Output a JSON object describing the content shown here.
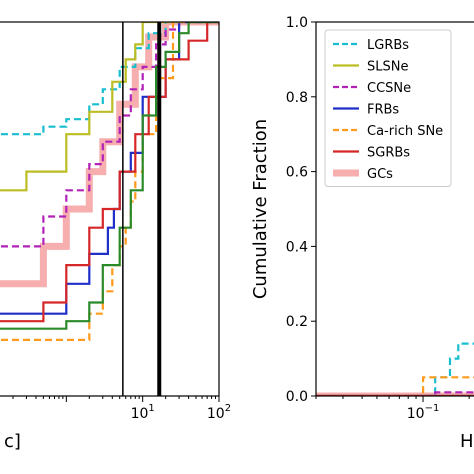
{
  "chart_data": [
    {
      "type": "line",
      "step": true,
      "xscale": "log",
      "xlim": [
        0.1,
        100
      ],
      "ylim": [
        0,
        1
      ],
      "xlabel_visible": "c]",
      "xticks": [
        {
          "value": 10,
          "base": "10",
          "exp": "1"
        },
        {
          "value": 100,
          "base": "10",
          "exp": "2"
        }
      ],
      "vlines": [
        {
          "x": 5.5,
          "width": 1.5
        },
        {
          "x": 16.5,
          "width": 4
        }
      ],
      "series": [
        {
          "name": "LGRBs",
          "color": "#17becf",
          "dash": "dashed",
          "points": [
            [
              0.1,
              0.7
            ],
            [
              0.5,
              0.72
            ],
            [
              1.0,
              0.74
            ],
            [
              2.0,
              0.78
            ],
            [
              3.0,
              0.82
            ],
            [
              5.0,
              0.88
            ],
            [
              8.0,
              0.93
            ],
            [
              12.0,
              0.97
            ],
            [
              20.0,
              1.0
            ],
            [
              100,
              1.0
            ]
          ]
        },
        {
          "name": "SLSNe",
          "color": "#bcbd22",
          "dash": "solid",
          "points": [
            [
              0.1,
              0.55
            ],
            [
              0.3,
              0.6
            ],
            [
              1.0,
              0.7
            ],
            [
              2.0,
              0.76
            ],
            [
              4.0,
              0.84
            ],
            [
              6.0,
              0.9
            ],
            [
              8.0,
              0.94
            ],
            [
              10.0,
              1.0
            ],
            [
              100,
              1.0
            ]
          ]
        },
        {
          "name": "CCSNe",
          "color": "#b322b8",
          "dash": "dashed",
          "points": [
            [
              0.1,
              0.4
            ],
            [
              0.5,
              0.48
            ],
            [
              1.0,
              0.55
            ],
            [
              2.0,
              0.62
            ],
            [
              3.0,
              0.68
            ],
            [
              5.0,
              0.75
            ],
            [
              7.0,
              0.82
            ],
            [
              10.0,
              0.88
            ],
            [
              15.0,
              0.94
            ],
            [
              20.0,
              0.98
            ],
            [
              30.0,
              1.0
            ],
            [
              100,
              1.0
            ]
          ]
        },
        {
          "name": "FRBs",
          "color": "#1f2fc8",
          "dash": "solid",
          "points": [
            [
              0.1,
              0.22
            ],
            [
              1.0,
              0.3
            ],
            [
              2.0,
              0.38
            ],
            [
              3.5,
              0.45
            ],
            [
              4.2,
              0.5
            ],
            [
              5.0,
              0.6
            ],
            [
              7.0,
              0.65
            ],
            [
              10.0,
              0.8
            ],
            [
              20.0,
              0.9
            ],
            [
              30.0,
              1.0
            ],
            [
              100,
              1.0
            ]
          ]
        },
        {
          "name": "Ca-rich SNe",
          "color": "#ff9a1a",
          "dash": "dashed",
          "points": [
            [
              0.1,
              0.15
            ],
            [
              2.0,
              0.22
            ],
            [
              3.0,
              0.28
            ],
            [
              4.0,
              0.35
            ],
            [
              5.0,
              0.4
            ],
            [
              6.0,
              0.45
            ],
            [
              7.0,
              0.52
            ],
            [
              8.0,
              0.6
            ],
            [
              10.0,
              0.7
            ],
            [
              15.0,
              0.85
            ],
            [
              25.0,
              1.0
            ],
            [
              100,
              1.0
            ]
          ]
        },
        {
          "name": "SGRBs",
          "color": "#d62728",
          "dash": "solid",
          "points": [
            [
              0.1,
              0.2
            ],
            [
              0.5,
              0.25
            ],
            [
              1.0,
              0.35
            ],
            [
              2.0,
              0.45
            ],
            [
              3.0,
              0.5
            ],
            [
              5.0,
              0.6
            ],
            [
              8.0,
              0.7
            ],
            [
              12.0,
              0.8
            ],
            [
              20.0,
              0.9
            ],
            [
              40.0,
              0.95
            ],
            [
              70.0,
              1.0
            ],
            [
              100,
              1.0
            ]
          ]
        },
        {
          "name": "GCs",
          "color": "#f4a0a0",
          "dash": "thick",
          "points": [
            [
              0.1,
              0.3
            ],
            [
              0.5,
              0.4
            ],
            [
              1.0,
              0.5
            ],
            [
              2.0,
              0.6
            ],
            [
              3.0,
              0.68
            ],
            [
              5.0,
              0.78
            ],
            [
              8.0,
              0.88
            ],
            [
              12.0,
              0.96
            ],
            [
              20.0,
              1.0
            ],
            [
              100,
              1.0
            ]
          ]
        },
        {
          "name": "green",
          "color": "#2a8a2a",
          "dash": "solid",
          "points": [
            [
              0.1,
              0.18
            ],
            [
              1.0,
              0.2
            ],
            [
              2.0,
              0.25
            ],
            [
              3.0,
              0.35
            ],
            [
              5.0,
              0.45
            ],
            [
              7.0,
              0.55
            ],
            [
              10.0,
              0.75
            ],
            [
              15.0,
              0.88
            ],
            [
              20.0,
              0.92
            ],
            [
              30.0,
              0.97
            ],
            [
              40.0,
              1.0
            ],
            [
              100,
              1.0
            ]
          ]
        }
      ]
    },
    {
      "type": "line",
      "step": true,
      "xscale": "log",
      "xlim": [
        0.02,
        0.25
      ],
      "ylim": [
        0,
        1
      ],
      "ylabel": "Cumulative Fraction",
      "xlabel_visible": "H",
      "yticks": [
        "0.0",
        "0.2",
        "0.4",
        "0.6",
        "0.8",
        "1.0"
      ],
      "yticks_values": [
        0.0,
        0.2,
        0.4,
        0.6,
        0.8,
        1.0
      ],
      "xticks": [
        {
          "value": 0.1,
          "base": "10",
          "exp": "−1"
        }
      ],
      "legend": {
        "placement": "top-left",
        "entries": [
          "LGRBs",
          "SLSNe",
          "CCSNe",
          "FRBs",
          "Ca-rich SNe",
          "SGRBs",
          "GCs"
        ]
      },
      "series": [
        {
          "name": "LGRBs",
          "color": "#17becf",
          "dash": "dashed",
          "points": [
            [
              0.02,
              0.0
            ],
            [
              0.12,
              0.05
            ],
            [
              0.15,
              0.1
            ],
            [
              0.17,
              0.14
            ],
            [
              0.25,
              0.14
            ]
          ]
        },
        {
          "name": "SLSNe",
          "color": "#bcbd22",
          "dash": "solid",
          "points": [
            [
              0.02,
              0.0
            ],
            [
              0.25,
              0.0
            ]
          ]
        },
        {
          "name": "CCSNe",
          "color": "#b322b8",
          "dash": "dashed",
          "points": [
            [
              0.02,
              0.0
            ],
            [
              0.12,
              0.01
            ],
            [
              0.25,
              0.02
            ]
          ]
        },
        {
          "name": "FRBs",
          "color": "#1f2fc8",
          "dash": "solid",
          "points": [
            [
              0.02,
              0.0
            ],
            [
              0.25,
              0.0
            ]
          ]
        },
        {
          "name": "Ca-rich SNe",
          "color": "#ff9a1a",
          "dash": "dashed",
          "points": [
            [
              0.02,
              0.0
            ],
            [
              0.1,
              0.05
            ],
            [
              0.25,
              0.05
            ]
          ]
        },
        {
          "name": "SGRBs",
          "color": "#d62728",
          "dash": "solid",
          "points": [
            [
              0.02,
              0.0
            ],
            [
              0.25,
              0.0
            ]
          ]
        },
        {
          "name": "GCs",
          "color": "#f4a0a0",
          "dash": "thick",
          "points": [
            [
              0.02,
              0.0
            ],
            [
              0.25,
              0.0
            ]
          ]
        }
      ]
    }
  ]
}
